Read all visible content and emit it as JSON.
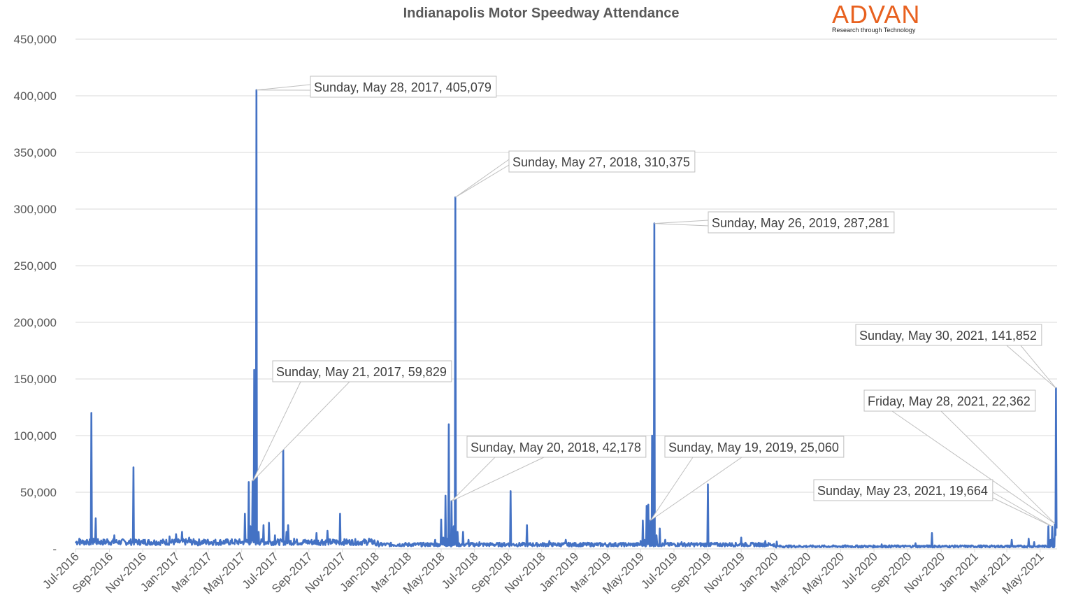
{
  "title": "Indianapolis Motor Speedway Attendance",
  "logo": {
    "word": "ADVAN",
    "tagline": "Research through Technology"
  },
  "colors": {
    "series": "#4472c4",
    "grid": "#d9d9d9",
    "text": "#595959",
    "logo": "#e8611f",
    "callout_border": "#bfbfbf"
  },
  "chart_data": {
    "type": "line",
    "title": "Indianapolis Motor Speedway Attendance",
    "xlabel": "",
    "ylabel": "",
    "ylim": [
      0,
      450000
    ],
    "x_range": [
      "2016-07-01",
      "2021-06-01"
    ],
    "grid": true,
    "y_ticks": [
      "-",
      "50,000",
      "100,000",
      "150,000",
      "200,000",
      "250,000",
      "300,000",
      "350,000",
      "400,000",
      "450,000"
    ],
    "x_ticks": [
      "Jul-2016",
      "Sep-2016",
      "Nov-2016",
      "Jan-2017",
      "Mar-2017",
      "May-2017",
      "Jul-2017",
      "Sep-2017",
      "Nov-2017",
      "Jan-2018",
      "Mar-2018",
      "May-2018",
      "Jul-2018",
      "Sep-2018",
      "Nov-2018",
      "Jan-2019",
      "Mar-2019",
      "May-2019",
      "Jul-2019",
      "Sep-2019",
      "Nov-2019",
      "Jan-2020",
      "Mar-2020",
      "May-2020",
      "Jul-2020",
      "Sep-2020",
      "Nov-2020",
      "Jan-2021",
      "Mar-2021",
      "May-2021"
    ],
    "series": [
      {
        "baseline": 5000,
        "points": [
          [
            "2016-07-01",
            5000
          ],
          [
            "2016-07-08",
            9000
          ],
          [
            "2016-07-15",
            6500
          ],
          [
            "2016-07-22",
            8000
          ],
          [
            "2016-07-30",
            120000
          ],
          [
            "2016-08-03",
            9000
          ],
          [
            "2016-08-07",
            27000
          ],
          [
            "2016-08-10",
            7000
          ],
          [
            "2016-08-28",
            8500
          ],
          [
            "2016-09-10",
            12000
          ],
          [
            "2016-09-20",
            6000
          ],
          [
            "2016-10-01",
            5500
          ],
          [
            "2016-10-15",
            72000
          ],
          [
            "2016-10-18",
            6000
          ],
          [
            "2016-11-01",
            5000
          ],
          [
            "2016-11-05",
            8000
          ],
          [
            "2016-12-01",
            4000
          ],
          [
            "2016-12-20",
            11000
          ],
          [
            "2017-01-01",
            13000
          ],
          [
            "2017-01-12",
            15000
          ],
          [
            "2017-01-25",
            10000
          ],
          [
            "2017-02-10",
            3000
          ],
          [
            "2017-03-15",
            3500
          ],
          [
            "2017-04-15",
            5000
          ],
          [
            "2017-05-01",
            6000
          ],
          [
            "2017-05-07",
            31000
          ],
          [
            "2017-05-10",
            8000
          ],
          [
            "2017-05-14",
            59000
          ],
          [
            "2017-05-17",
            20000
          ],
          [
            "2017-05-21",
            59829
          ],
          [
            "2017-05-24",
            158000
          ],
          [
            "2017-05-28",
            405079
          ],
          [
            "2017-06-01",
            15000
          ],
          [
            "2017-06-10",
            21000
          ],
          [
            "2017-06-20",
            23000
          ],
          [
            "2017-07-01",
            12000
          ],
          [
            "2017-07-16",
            91000
          ],
          [
            "2017-07-22",
            15000
          ],
          [
            "2017-07-25",
            21000
          ],
          [
            "2017-08-05",
            9000
          ],
          [
            "2017-09-01",
            6000
          ],
          [
            "2017-09-15",
            14000
          ],
          [
            "2017-09-25",
            8000
          ],
          [
            "2017-10-05",
            16000
          ],
          [
            "2017-10-12",
            6000
          ],
          [
            "2017-10-28",
            31000
          ],
          [
            "2017-11-01",
            5000
          ],
          [
            "2017-12-01",
            3500
          ],
          [
            "2017-12-20",
            9000
          ],
          [
            "2018-01-05",
            7000
          ],
          [
            "2018-01-20",
            4000
          ],
          [
            "2018-03-01",
            2500
          ],
          [
            "2018-04-01",
            3500
          ],
          [
            "2018-04-20",
            8000
          ],
          [
            "2018-05-01",
            26000
          ],
          [
            "2018-05-05",
            10000
          ],
          [
            "2018-05-09",
            47000
          ],
          [
            "2018-05-12",
            9000
          ],
          [
            "2018-05-15",
            110000
          ],
          [
            "2018-05-17",
            12000
          ],
          [
            "2018-05-20",
            42178
          ],
          [
            "2018-05-24",
            20000
          ],
          [
            "2018-05-27",
            310375
          ],
          [
            "2018-05-31",
            15000
          ],
          [
            "2018-06-10",
            15000
          ],
          [
            "2018-06-20",
            8000
          ],
          [
            "2018-07-10",
            6000
          ],
          [
            "2018-08-01",
            4000
          ],
          [
            "2018-09-01",
            5000
          ],
          [
            "2018-09-05",
            51000
          ],
          [
            "2018-09-09",
            4000
          ],
          [
            "2018-10-01",
            4500
          ],
          [
            "2018-10-05",
            21000
          ],
          [
            "2018-10-09",
            3500
          ],
          [
            "2018-11-15",
            7000
          ],
          [
            "2018-12-15",
            8000
          ],
          [
            "2019-01-15",
            2500
          ],
          [
            "2019-03-01",
            2000
          ],
          [
            "2019-04-15",
            3500
          ],
          [
            "2019-05-01",
            7000
          ],
          [
            "2019-05-05",
            25000
          ],
          [
            "2019-05-08",
            8000
          ],
          [
            "2019-05-12",
            38000
          ],
          [
            "2019-05-15",
            39000
          ],
          [
            "2019-05-19",
            25060
          ],
          [
            "2019-05-22",
            100000
          ],
          [
            "2019-05-26",
            287281
          ],
          [
            "2019-05-30",
            12000
          ],
          [
            "2019-06-05",
            18000
          ],
          [
            "2019-06-15",
            8000
          ],
          [
            "2019-07-15",
            6000
          ],
          [
            "2019-08-15",
            4000
          ],
          [
            "2019-08-30",
            5000
          ],
          [
            "2019-09-01",
            57000
          ],
          [
            "2019-09-04",
            5000
          ],
          [
            "2019-10-01",
            3500
          ],
          [
            "2019-11-01",
            10000
          ],
          [
            "2019-11-05",
            3000
          ],
          [
            "2019-12-15",
            7000
          ],
          [
            "2020-01-05",
            6500
          ],
          [
            "2020-01-20",
            2000
          ],
          [
            "2020-03-01",
            1800
          ],
          [
            "2020-05-01",
            1500
          ],
          [
            "2020-06-15",
            2500
          ],
          [
            "2020-07-15",
            4000
          ],
          [
            "2020-08-15",
            3000
          ],
          [
            "2020-09-15",
            5000
          ],
          [
            "2020-10-15",
            14000
          ],
          [
            "2020-10-20",
            3000
          ],
          [
            "2020-12-01",
            2500
          ],
          [
            "2021-01-15",
            1500
          ],
          [
            "2021-03-01",
            2000
          ],
          [
            "2021-03-10",
            8000
          ],
          [
            "2021-03-15",
            2500
          ],
          [
            "2021-04-10",
            9000
          ],
          [
            "2021-04-20",
            6000
          ],
          [
            "2021-05-05",
            3000
          ],
          [
            "2021-05-16",
            20000
          ],
          [
            "2021-05-20",
            8000
          ],
          [
            "2021-05-23",
            19664
          ],
          [
            "2021-05-25",
            9000
          ],
          [
            "2021-05-28",
            22362
          ],
          [
            "2021-05-29",
            12000
          ],
          [
            "2021-05-30",
            141852
          ],
          [
            "2021-05-31",
            18000
          ]
        ]
      }
    ],
    "annotations": [
      {
        "label": "Sunday, May 28, 2017,  405,079",
        "date": "2017-05-28",
        "value": 405079
      },
      {
        "label": "Sunday, May 27, 2018,  310,375",
        "date": "2018-05-27",
        "value": 310375
      },
      {
        "label": "Sunday, May 26, 2019,  287,281",
        "date": "2019-05-26",
        "value": 287281
      },
      {
        "label": "Sunday, May 30, 2021,  141,852",
        "date": "2021-05-30",
        "value": 141852
      },
      {
        "label": "Sunday, May 21, 2017,  59,829",
        "date": "2017-05-21",
        "value": 59829
      },
      {
        "label": "Friday, May 28, 2021,  22,362",
        "date": "2021-05-28",
        "value": 22362
      },
      {
        "label": "Sunday, May 20, 2018,  42,178",
        "date": "2018-05-20",
        "value": 42178
      },
      {
        "label": "Sunday, May 19, 2019,  25,060",
        "date": "2019-05-19",
        "value": 25060
      },
      {
        "label": "Sunday, May 23, 2021,  19,664",
        "date": "2021-05-23",
        "value": 19664
      }
    ]
  }
}
